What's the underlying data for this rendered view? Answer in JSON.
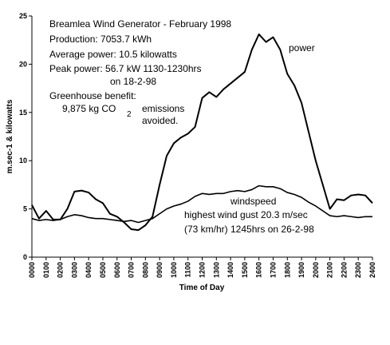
{
  "chart_data": {
    "type": "line",
    "x_label": "Time of Day",
    "y_label": "m.sec-1 & kilowatts",
    "annotations": [
      "Breamlea Wind Generator - February 1998",
      "Production: 7053.7 kWh",
      "Average power: 10.5 kilowatts",
      "Peak power: 56.7 kW 1130-1230hrs",
      "on 18-2-98",
      "Greenhouse benefit:",
      "9,875 kg CO",
      "2",
      "emissions",
      "avoided.",
      "highest wind gust 20.3 m/sec",
      "(73 km/hr) 1245hrs on 26-2-98"
    ],
    "x": [
      0,
      0.5,
      1,
      1.5,
      2,
      2.5,
      3,
      3.5,
      4,
      4.5,
      5,
      5.5,
      6,
      6.5,
      7,
      7.5,
      8,
      8.5,
      9,
      9.5,
      10,
      10.5,
      11,
      11.5,
      12,
      12.5,
      13,
      13.5,
      14,
      14.5,
      15,
      15.5,
      16,
      16.5,
      17,
      17.5,
      18,
      18.5,
      19,
      19.5,
      20,
      20.5,
      21,
      21.5,
      22,
      22.5,
      23,
      23.5,
      24
    ],
    "series": [
      {
        "name": "power",
        "color": "#000000",
        "values": [
          5.4,
          4.0,
          4.8,
          3.9,
          3.9,
          5.0,
          6.8,
          6.9,
          6.7,
          6.0,
          5.6,
          4.5,
          4.2,
          3.6,
          2.9,
          2.8,
          3.3,
          4.2,
          7.5,
          10.5,
          11.8,
          12.4,
          12.8,
          13.5,
          16.5,
          17.1,
          16.6,
          17.4,
          18.0,
          18.6,
          19.2,
          21.5,
          23.1,
          22.3,
          22.8,
          21.5,
          19.0,
          17.8,
          16.0,
          13.0,
          10.0,
          7.5,
          5.0,
          6.0,
          5.9,
          6.4,
          6.5,
          6.4,
          5.6
        ]
      },
      {
        "name": "windspeed",
        "color": "#000000",
        "values": [
          4.0,
          3.8,
          3.9,
          3.8,
          3.9,
          4.2,
          4.4,
          4.3,
          4.1,
          4.0,
          4.0,
          3.9,
          3.8,
          3.7,
          3.8,
          3.6,
          3.8,
          4.0,
          4.5,
          5.0,
          5.3,
          5.5,
          5.8,
          6.3,
          6.6,
          6.5,
          6.6,
          6.6,
          6.8,
          6.9,
          6.8,
          7.0,
          7.4,
          7.3,
          7.3,
          7.1,
          6.7,
          6.5,
          6.2,
          5.7,
          5.3,
          4.8,
          4.3,
          4.2,
          4.3,
          4.2,
          4.1,
          4.2,
          4.2
        ]
      }
    ],
    "xlim": [
      0,
      24
    ],
    "ylim": [
      0,
      25
    ],
    "yticks": [
      0,
      5,
      10,
      15,
      20,
      25
    ],
    "xticks": [
      {
        "value": 0,
        "label": "0000"
      },
      {
        "value": 1,
        "label": "0100"
      },
      {
        "value": 2,
        "label": "0200"
      },
      {
        "value": 3,
        "label": "0300"
      },
      {
        "value": 4,
        "label": "0400"
      },
      {
        "value": 5,
        "label": "0500"
      },
      {
        "value": 6,
        "label": "0600"
      },
      {
        "value": 7,
        "label": "0700"
      },
      {
        "value": 8,
        "label": "0800"
      },
      {
        "value": 9,
        "label": "0900"
      },
      {
        "value": 10,
        "label": "1000"
      },
      {
        "value": 11,
        "label": "1100"
      },
      {
        "value": 12,
        "label": "1200"
      },
      {
        "value": 13,
        "label": "1300"
      },
      {
        "value": 14,
        "label": "1400"
      },
      {
        "value": 15,
        "label": "1500"
      },
      {
        "value": 16,
        "label": "1600"
      },
      {
        "value": 17,
        "label": "1700"
      },
      {
        "value": 18,
        "label": "1800"
      },
      {
        "value": 19,
        "label": "1900"
      },
      {
        "value": 20,
        "label": "2000"
      },
      {
        "value": 21,
        "label": "2100"
      },
      {
        "value": 22,
        "label": "2200"
      },
      {
        "value": 23,
        "label": "2300"
      },
      {
        "value": 24,
        "label": "2400"
      }
    ],
    "grid": false
  }
}
